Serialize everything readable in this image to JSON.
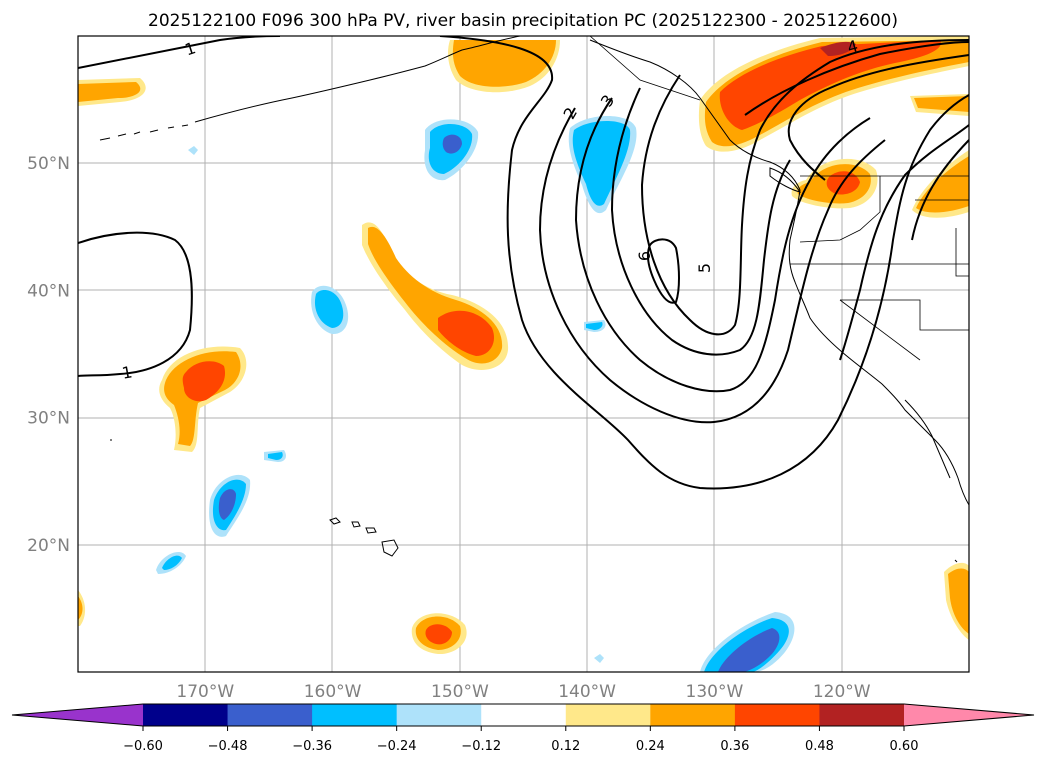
{
  "title": "2025122100 F096 300 hPa PV, river basin precipitation PC (2025122300 - 2025122600)",
  "chart_data": {
    "type": "contour_map",
    "title": "2025122100 F096 300 hPa PV, river basin precipitation PC (2025122300 - 2025122600)",
    "map_extent": {
      "lon": [
        -180,
        -110
      ],
      "lat": [
        10,
        60
      ]
    },
    "lon_ticks": [
      {
        "value": -170,
        "label": "170°W"
      },
      {
        "value": -160,
        "label": "160°W"
      },
      {
        "value": -150,
        "label": "150°W"
      },
      {
        "value": -140,
        "label": "140°W"
      },
      {
        "value": -130,
        "label": "130°W"
      },
      {
        "value": -120,
        "label": "120°W"
      }
    ],
    "lat_ticks": [
      {
        "value": 50,
        "label": "50°N"
      },
      {
        "value": 40,
        "label": "40°N"
      },
      {
        "value": 30,
        "label": "30°N"
      },
      {
        "value": 20,
        "label": "20°N"
      }
    ],
    "grid": true,
    "colorbar": {
      "orientation": "horizontal",
      "extend": "both",
      "levels": [
        -0.72,
        -0.6,
        -0.48,
        -0.36,
        -0.24,
        -0.12,
        0.12,
        0.24,
        0.36,
        0.48,
        0.6,
        0.72
      ],
      "tick_labels": [
        "−0.60",
        "−0.48",
        "−0.36",
        "−0.24",
        "−0.12",
        "0.12",
        "0.24",
        "0.36",
        "0.48",
        "0.60"
      ],
      "colors": [
        "#9933cc",
        "#00008b",
        "#3a5fcd",
        "#00bfff",
        "#aee2fa",
        "#ffffff",
        "#ffe88a",
        "#ffa500",
        "#ff4500",
        "#b22222",
        "#ff88aa",
        "#ff88aa"
      ]
    },
    "pv_contour_labels": [
      "1",
      "1",
      "2",
      "3",
      "4",
      "5",
      "6"
    ],
    "shaded_regions": [
      {
        "lon": -168.5,
        "lat": 23,
        "value": -0.4
      },
      {
        "lon": -151,
        "lat": 51.5,
        "value": -0.4
      },
      {
        "lon": -140,
        "lat": 49,
        "value": -0.3
      },
      {
        "lon": -160,
        "lat": 38.5,
        "value": -0.3
      },
      {
        "lon": -173.5,
        "lat": 18.5,
        "value": -0.3
      },
      {
        "lon": -165,
        "lat": 27,
        "value": -0.25
      },
      {
        "lon": -139.5,
        "lat": 37,
        "value": -0.25
      },
      {
        "lon": -127,
        "lat": 12,
        "value": -0.45
      },
      {
        "lon": -170,
        "lat": 32.5,
        "value": 0.4
      },
      {
        "lon": -150.5,
        "lat": 37,
        "value": 0.4
      },
      {
        "lon": -151.5,
        "lat": 13,
        "value": 0.4
      },
      {
        "lon": -147,
        "lat": 58,
        "value": 0.3
      },
      {
        "lon": -178,
        "lat": 55.5,
        "value": 0.25
      },
      {
        "lon": -124,
        "lat": 56,
        "value": 0.4
      },
      {
        "lon": -119.5,
        "lat": 48.5,
        "value": 0.4
      },
      {
        "lon": -111,
        "lat": 47,
        "value": 0.3
      },
      {
        "lon": -111,
        "lat": 14,
        "value": 0.3
      }
    ]
  }
}
